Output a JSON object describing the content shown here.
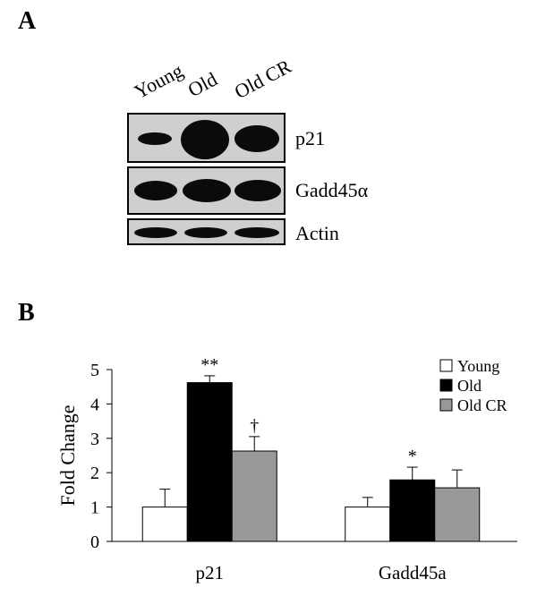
{
  "panel_a": {
    "label": "A",
    "lanes": [
      "Young",
      "Old",
      "Old CR"
    ],
    "blots": [
      {
        "label": "p21",
        "band_intensity": [
          0.45,
          1.0,
          0.85
        ]
      },
      {
        "label": "Gadd45α",
        "band_intensity": [
          0.8,
          0.95,
          0.9
        ]
      },
      {
        "label": "Actin",
        "band_intensity": [
          0.8,
          0.8,
          0.8
        ]
      }
    ]
  },
  "panel_b": {
    "label": "B"
  },
  "chart_data": {
    "type": "bar",
    "categories": [
      "p21",
      "Gadd45a"
    ],
    "series": [
      {
        "name": "Young",
        "color": "#ffffff",
        "values": [
          1.0,
          1.0
        ],
        "errors": [
          0.52,
          0.28
        ],
        "annotations": [
          "",
          ""
        ]
      },
      {
        "name": "Old",
        "color": "#000000",
        "values": [
          4.62,
          1.79
        ],
        "errors": [
          0.2,
          0.37
        ],
        "annotations": [
          "**",
          "*"
        ]
      },
      {
        "name": "Old CR",
        "color": "#999999",
        "values": [
          2.63,
          1.56
        ],
        "errors": [
          0.42,
          0.52
        ],
        "annotations": [
          "†",
          ""
        ]
      }
    ],
    "xlabel": "",
    "ylabel": "Fold Change",
    "ylim": [
      0,
      5
    ],
    "yticks": [
      0,
      1,
      2,
      3,
      4,
      5
    ],
    "legend_position": "top-right",
    "grid": false
  }
}
